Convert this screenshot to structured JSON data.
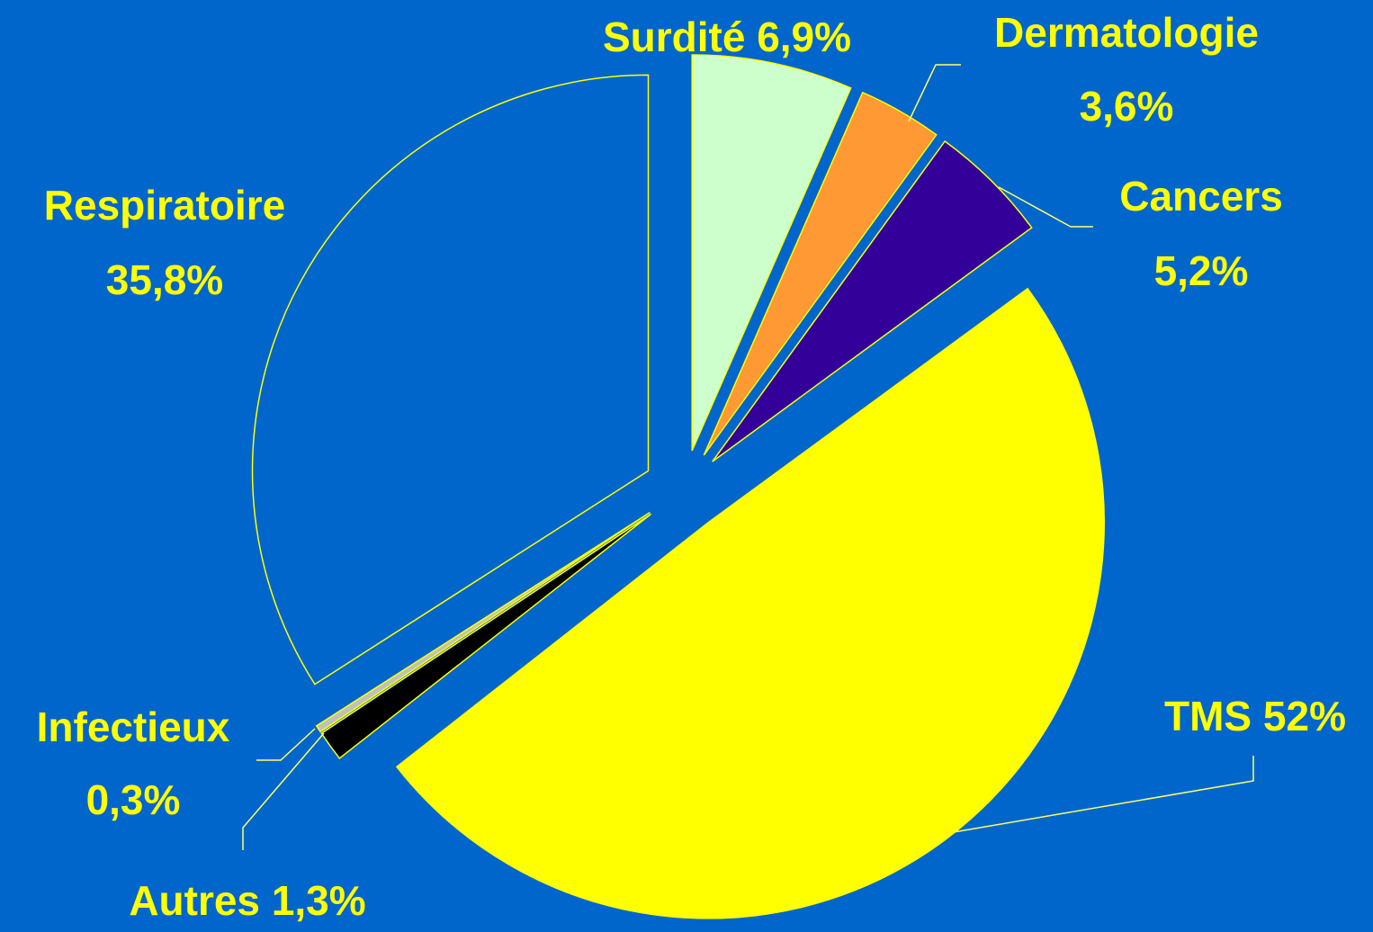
{
  "chart_data": {
    "type": "pie",
    "categories": [
      "Surdité",
      "Dermatologie",
      "Cancers",
      "TMS",
      "Autres",
      "Infectieux",
      "Respiratoire"
    ],
    "values": [
      6.9,
      3.6,
      5.2,
      52,
      1.3,
      0.3,
      35.8
    ],
    "value_labels": [
      "6,9%",
      "3,6%",
      "5,2%",
      "52%",
      "1,3%",
      "0,3%",
      "35,8%"
    ],
    "colors": [
      "#ccffcc",
      "#ff9933",
      "#330099",
      "#ffff00",
      "#000000",
      "#c0c0c0",
      "#0066cc"
    ]
  }
}
